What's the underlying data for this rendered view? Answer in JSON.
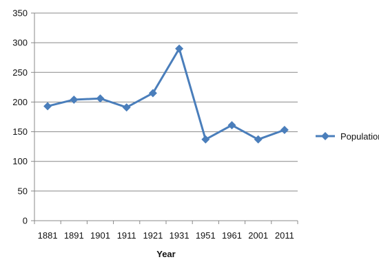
{
  "chart_data": {
    "type": "line",
    "title": "",
    "xlabel": "Year",
    "ylabel": "",
    "categories": [
      "1881",
      "1891",
      "1901",
      "1911",
      "1921",
      "1931",
      "1951",
      "1961",
      "2001",
      "2011"
    ],
    "series": [
      {
        "name": "Population",
        "values": [
          193,
          204,
          206,
          191,
          215,
          290,
          137,
          161,
          137,
          153
        ],
        "color": "#4a7ebb",
        "marker": "diamond"
      }
    ],
    "ylim": [
      0,
      350
    ],
    "yticks": [
      0,
      50,
      100,
      150,
      200,
      250,
      300,
      350
    ],
    "grid": true,
    "legend_position": "right"
  }
}
